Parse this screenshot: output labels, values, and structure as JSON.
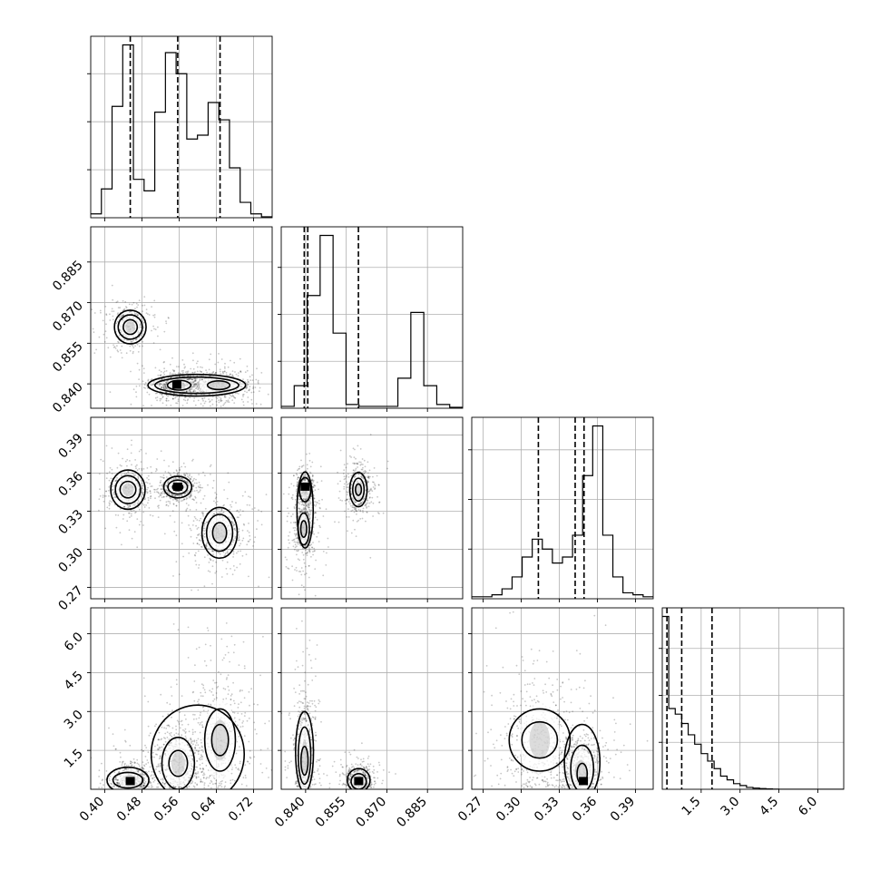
{
  "chart_data": {
    "type": "corner",
    "parameters": 4,
    "axes": [
      {
        "ticks": [
          "0.40",
          "0.48",
          "0.56",
          "0.64",
          "0.72"
        ],
        "range": [
          0.37,
          0.76
        ]
      },
      {
        "ticks": [
          "0.840",
          "0.855",
          "0.870",
          "0.885"
        ],
        "range": [
          0.831,
          0.898
        ]
      },
      {
        "ticks": [
          "0.27",
          "0.30",
          "0.33",
          "0.36",
          "0.39"
        ],
        "range": [
          0.261,
          0.404
        ]
      },
      {
        "ticks": [
          "1.5",
          "3.0",
          "4.5",
          "6.0"
        ],
        "range": [
          0.0,
          7.0
        ]
      }
    ],
    "grid": true,
    "quantile_lines": [
      [
        0.455,
        0.557,
        0.648
      ],
      [
        0.8395,
        0.8408,
        0.8595
      ],
      [
        0.3135,
        0.3425,
        0.3495
      ],
      [
        0.18,
        0.75,
        1.92
      ]
    ],
    "histograms": [
      {
        "edges_from": 0.37,
        "edges_to": 0.76,
        "counts": [
          0.02,
          0.15,
          0.58,
          0.9,
          0.2,
          0.14,
          0.55,
          0.86,
          0.75,
          0.41,
          0.43,
          0.6,
          0.51,
          0.26,
          0.08,
          0.02,
          0.005
        ]
      },
      {
        "edges_from": 0.831,
        "edges_to": 0.898,
        "counts": [
          0.01,
          0.12,
          0.6,
          0.92,
          0.4,
          0.02,
          0.01,
          0.01,
          0.01,
          0.16,
          0.51,
          0.12,
          0.02,
          0.005
        ]
      },
      {
        "edges_from": 0.261,
        "edges_to": 0.404,
        "counts": [
          0.01,
          0.01,
          0.02,
          0.05,
          0.11,
          0.21,
          0.3,
          0.25,
          0.18,
          0.21,
          0.32,
          0.62,
          0.87,
          0.32,
          0.11,
          0.03,
          0.02,
          0.01
        ]
      },
      {
        "edges_from": 0.0,
        "edges_to": 7.0,
        "counts": [
          0.92,
          0.43,
          0.4,
          0.35,
          0.29,
          0.24,
          0.19,
          0.15,
          0.11,
          0.07,
          0.05,
          0.03,
          0.02,
          0.01,
          0.006,
          0.004,
          0.002,
          0.001,
          0.0,
          0.0,
          0.0,
          0.0,
          0.0,
          0.0,
          0.0,
          0.0,
          0.0,
          0.0
        ]
      }
    ],
    "density_clusters": [
      {
        "row": 1,
        "col": 0,
        "clusters": [
          {
            "cx": 0.455,
            "cy": 0.861,
            "sx": 0.018,
            "sy": 0.0035,
            "w": 0.45
          },
          {
            "cx": 0.56,
            "cy": 0.8395,
            "sx": 0.022,
            "sy": 0.0022,
            "w": 0.7
          },
          {
            "cx": 0.645,
            "cy": 0.8395,
            "sx": 0.035,
            "sy": 0.0028,
            "w": 0.6
          }
        ]
      },
      {
        "row": 2,
        "col": 0,
        "clusters": [
          {
            "cx": 0.45,
            "cy": 0.347,
            "sx": 0.02,
            "sy": 0.0085,
            "w": 0.5
          },
          {
            "cx": 0.557,
            "cy": 0.349,
            "sx": 0.018,
            "sy": 0.0055,
            "w": 0.55
          },
          {
            "cx": 0.647,
            "cy": 0.313,
            "sx": 0.026,
            "sy": 0.011,
            "w": 0.55
          }
        ]
      },
      {
        "row": 2,
        "col": 1,
        "clusters": [
          {
            "cx": 0.8398,
            "cy": 0.347,
            "sx": 0.0015,
            "sy": 0.006,
            "w": 0.5
          },
          {
            "cx": 0.8393,
            "cy": 0.316,
            "sx": 0.0018,
            "sy": 0.011,
            "w": 0.5
          },
          {
            "cx": 0.8595,
            "cy": 0.347,
            "sx": 0.0022,
            "sy": 0.0085,
            "w": 0.5
          }
        ]
      },
      {
        "row": 3,
        "col": 0,
        "clusters": [
          {
            "cx": 0.455,
            "cy": 0.35,
            "sx": 0.02,
            "sy": 0.35,
            "w": 0.5
          },
          {
            "cx": 0.558,
            "cy": 1.0,
            "sx": 0.024,
            "sy": 0.75,
            "w": 0.55
          },
          {
            "cx": 0.648,
            "cy": 1.9,
            "sx": 0.03,
            "sy": 1.3,
            "w": 0.55
          }
        ]
      },
      {
        "row": 3,
        "col": 1,
        "clusters": [
          {
            "cx": 0.8396,
            "cy": 1.2,
            "sx": 0.0018,
            "sy": 1.2,
            "w": 0.55
          },
          {
            "cx": 0.8596,
            "cy": 0.35,
            "sx": 0.0022,
            "sy": 0.3,
            "w": 0.5
          }
        ]
      },
      {
        "row": 3,
        "col": 2,
        "clusters": [
          {
            "cx": 0.3145,
            "cy": 1.9,
            "sx": 0.0135,
            "sy": 1.2,
            "w": 0.55
          },
          {
            "cx": 0.347,
            "cy": 0.7,
            "sx": 0.008,
            "sy": 0.7,
            "w": 0.55
          }
        ]
      }
    ],
    "contours": [
      {
        "row": 1,
        "col": 0,
        "shapes": [
          {
            "cx": 0.455,
            "cy": 0.861,
            "rx": 0.034,
            "ry": 0.0062
          },
          {
            "cx": 0.455,
            "cy": 0.861,
            "rx": 0.026,
            "ry": 0.0045
          },
          {
            "cx": 0.455,
            "cy": 0.861,
            "rx": 0.015,
            "ry": 0.0027
          },
          {
            "cx": 0.598,
            "cy": 0.8395,
            "rx": 0.105,
            "ry": 0.004
          },
          {
            "cx": 0.598,
            "cy": 0.8395,
            "rx": 0.09,
            "ry": 0.003
          },
          {
            "cx": 0.56,
            "cy": 0.8395,
            "rx": 0.025,
            "ry": 0.0018
          },
          {
            "cx": 0.645,
            "cy": 0.8395,
            "rx": 0.024,
            "ry": 0.0016
          }
        ]
      },
      {
        "row": 2,
        "col": 0,
        "shapes": [
          {
            "cx": 0.45,
            "cy": 0.347,
            "rx": 0.037,
            "ry": 0.0155
          },
          {
            "cx": 0.45,
            "cy": 0.347,
            "rx": 0.027,
            "ry": 0.011
          },
          {
            "cx": 0.45,
            "cy": 0.347,
            "rx": 0.017,
            "ry": 0.0065
          },
          {
            "cx": 0.557,
            "cy": 0.349,
            "rx": 0.03,
            "ry": 0.0085
          },
          {
            "cx": 0.557,
            "cy": 0.349,
            "rx": 0.021,
            "ry": 0.0055
          },
          {
            "cx": 0.557,
            "cy": 0.349,
            "rx": 0.011,
            "ry": 0.0028
          },
          {
            "cx": 0.647,
            "cy": 0.313,
            "rx": 0.038,
            "ry": 0.02
          },
          {
            "cx": 0.647,
            "cy": 0.313,
            "rx": 0.028,
            "ry": 0.0145
          },
          {
            "cx": 0.647,
            "cy": 0.313,
            "rx": 0.015,
            "ry": 0.008
          }
        ]
      },
      {
        "row": 2,
        "col": 1,
        "shapes": [
          {
            "cx": 0.8398,
            "cy": 0.331,
            "rx": 0.003,
            "ry": 0.03
          },
          {
            "cx": 0.8398,
            "cy": 0.347,
            "rx": 0.0021,
            "ry": 0.0095
          },
          {
            "cx": 0.8393,
            "cy": 0.316,
            "rx": 0.0021,
            "ry": 0.0125
          },
          {
            "cx": 0.8393,
            "cy": 0.316,
            "rx": 0.0011,
            "ry": 0.0065
          },
          {
            "cx": 0.8595,
            "cy": 0.347,
            "rx": 0.0032,
            "ry": 0.0135
          },
          {
            "cx": 0.8595,
            "cy": 0.347,
            "rx": 0.0021,
            "ry": 0.009
          },
          {
            "cx": 0.8595,
            "cy": 0.347,
            "rx": 0.0011,
            "ry": 0.0045
          }
        ]
      },
      {
        "row": 3,
        "col": 0,
        "shapes": [
          {
            "cx": 0.45,
            "cy": 0.35,
            "rx": 0.045,
            "ry": 0.5
          },
          {
            "cx": 0.45,
            "cy": 0.35,
            "rx": 0.032,
            "ry": 0.3
          },
          {
            "cx": 0.6,
            "cy": 1.35,
            "rx": 0.1,
            "ry": 1.9
          },
          {
            "cx": 0.558,
            "cy": 1.0,
            "rx": 0.035,
            "ry": 1.0
          },
          {
            "cx": 0.558,
            "cy": 1.0,
            "rx": 0.02,
            "ry": 0.5
          },
          {
            "cx": 0.648,
            "cy": 1.9,
            "rx": 0.033,
            "ry": 1.2
          },
          {
            "cx": 0.648,
            "cy": 1.9,
            "rx": 0.018,
            "ry": 0.6
          }
        ]
      },
      {
        "row": 3,
        "col": 1,
        "shapes": [
          {
            "cx": 0.8396,
            "cy": 1.45,
            "rx": 0.0033,
            "ry": 1.55
          },
          {
            "cx": 0.8396,
            "cy": 1.3,
            "rx": 0.0023,
            "ry": 1.1
          },
          {
            "cx": 0.8396,
            "cy": 1.1,
            "rx": 0.0013,
            "ry": 0.55
          },
          {
            "cx": 0.8596,
            "cy": 0.35,
            "rx": 0.0042,
            "ry": 0.45
          },
          {
            "cx": 0.8596,
            "cy": 0.3,
            "rx": 0.0028,
            "ry": 0.3
          }
        ]
      },
      {
        "row": 3,
        "col": 2,
        "shapes": [
          {
            "cx": 0.3145,
            "cy": 1.9,
            "rx": 0.024,
            "ry": 1.2
          },
          {
            "cx": 0.3145,
            "cy": 1.9,
            "rx": 0.014,
            "ry": 0.7
          },
          {
            "cx": 0.348,
            "cy": 1.05,
            "rx": 0.014,
            "ry": 1.45
          },
          {
            "cx": 0.348,
            "cy": 0.8,
            "rx": 0.009,
            "ry": 0.9
          },
          {
            "cx": 0.348,
            "cy": 0.6,
            "rx": 0.004,
            "ry": 0.4
          }
        ]
      }
    ],
    "peak_cells": [
      {
        "row": 1,
        "col": 0,
        "x": 0.555,
        "y": 0.8395
      },
      {
        "row": 2,
        "col": 0,
        "x": 0.557,
        "y": 0.349
      },
      {
        "row": 2,
        "col": 1,
        "x": 0.8398,
        "y": 0.349
      },
      {
        "row": 3,
        "col": 0,
        "x": 0.455,
        "y": 0.3
      },
      {
        "row": 3,
        "col": 1,
        "x": 0.8596,
        "y": 0.3
      },
      {
        "row": 3,
        "col": 2,
        "x": 0.349,
        "y": 0.3
      }
    ],
    "colors": {
      "line": "#000000",
      "grid": "#b0b0b0",
      "points": "#000000",
      "peak": "#000000"
    }
  }
}
